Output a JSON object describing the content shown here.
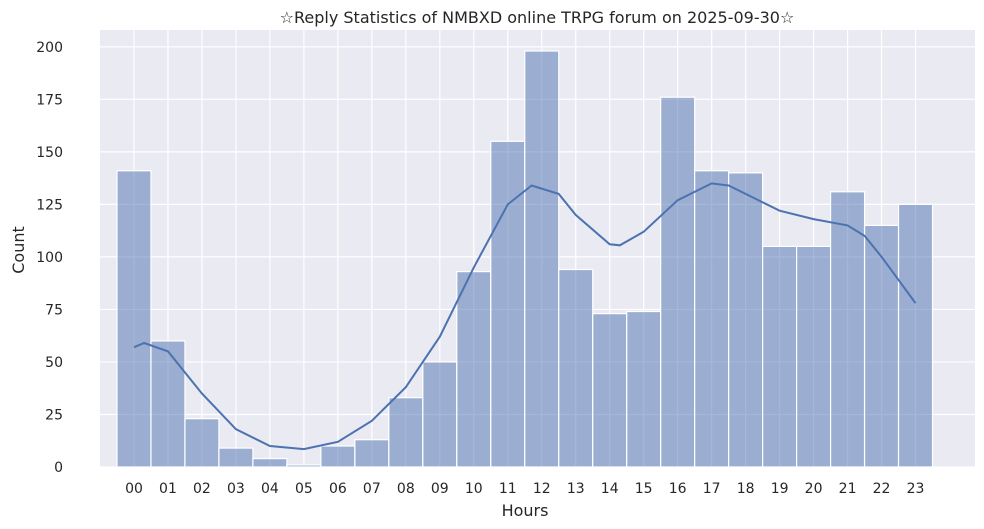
{
  "chart_data": {
    "type": "bar",
    "title": "☆Reply Statistics of NMBXD online TRPG forum on 2025-09-30☆",
    "xlabel": "Hours",
    "ylabel": "Count",
    "categories": [
      "00",
      "01",
      "02",
      "03",
      "04",
      "05",
      "06",
      "07",
      "08",
      "09",
      "10",
      "11",
      "12",
      "13",
      "14",
      "15",
      "16",
      "17",
      "18",
      "19",
      "20",
      "21",
      "22",
      "23"
    ],
    "values": [
      141,
      60,
      23,
      9,
      4,
      1,
      10,
      13,
      33,
      50,
      93,
      155,
      198,
      94,
      73,
      74,
      176,
      141,
      140,
      105,
      105,
      131,
      115,
      125
    ],
    "yticks": [
      0,
      25,
      50,
      75,
      100,
      125,
      150,
      175,
      200
    ],
    "ylim": [
      0,
      208
    ],
    "xlim": [
      -1,
      24.75
    ],
    "grid": true,
    "bar_color": "#4c72b0",
    "kde": {
      "x": [
        0,
        0.3,
        1,
        2,
        3,
        4,
        5,
        6,
        7,
        8,
        9,
        10,
        11,
        11.7,
        12.5,
        13,
        14,
        14.3,
        15,
        16,
        17,
        17.5,
        18,
        19,
        20,
        21,
        21.5,
        22,
        23
      ],
      "y": [
        57,
        59,
        55,
        35,
        18,
        10,
        8.5,
        12,
        22,
        38,
        62,
        95,
        125,
        134,
        130,
        120,
        106,
        105.5,
        112,
        127,
        135,
        134,
        130,
        122,
        118,
        115,
        110,
        100,
        78
      ]
    }
  }
}
